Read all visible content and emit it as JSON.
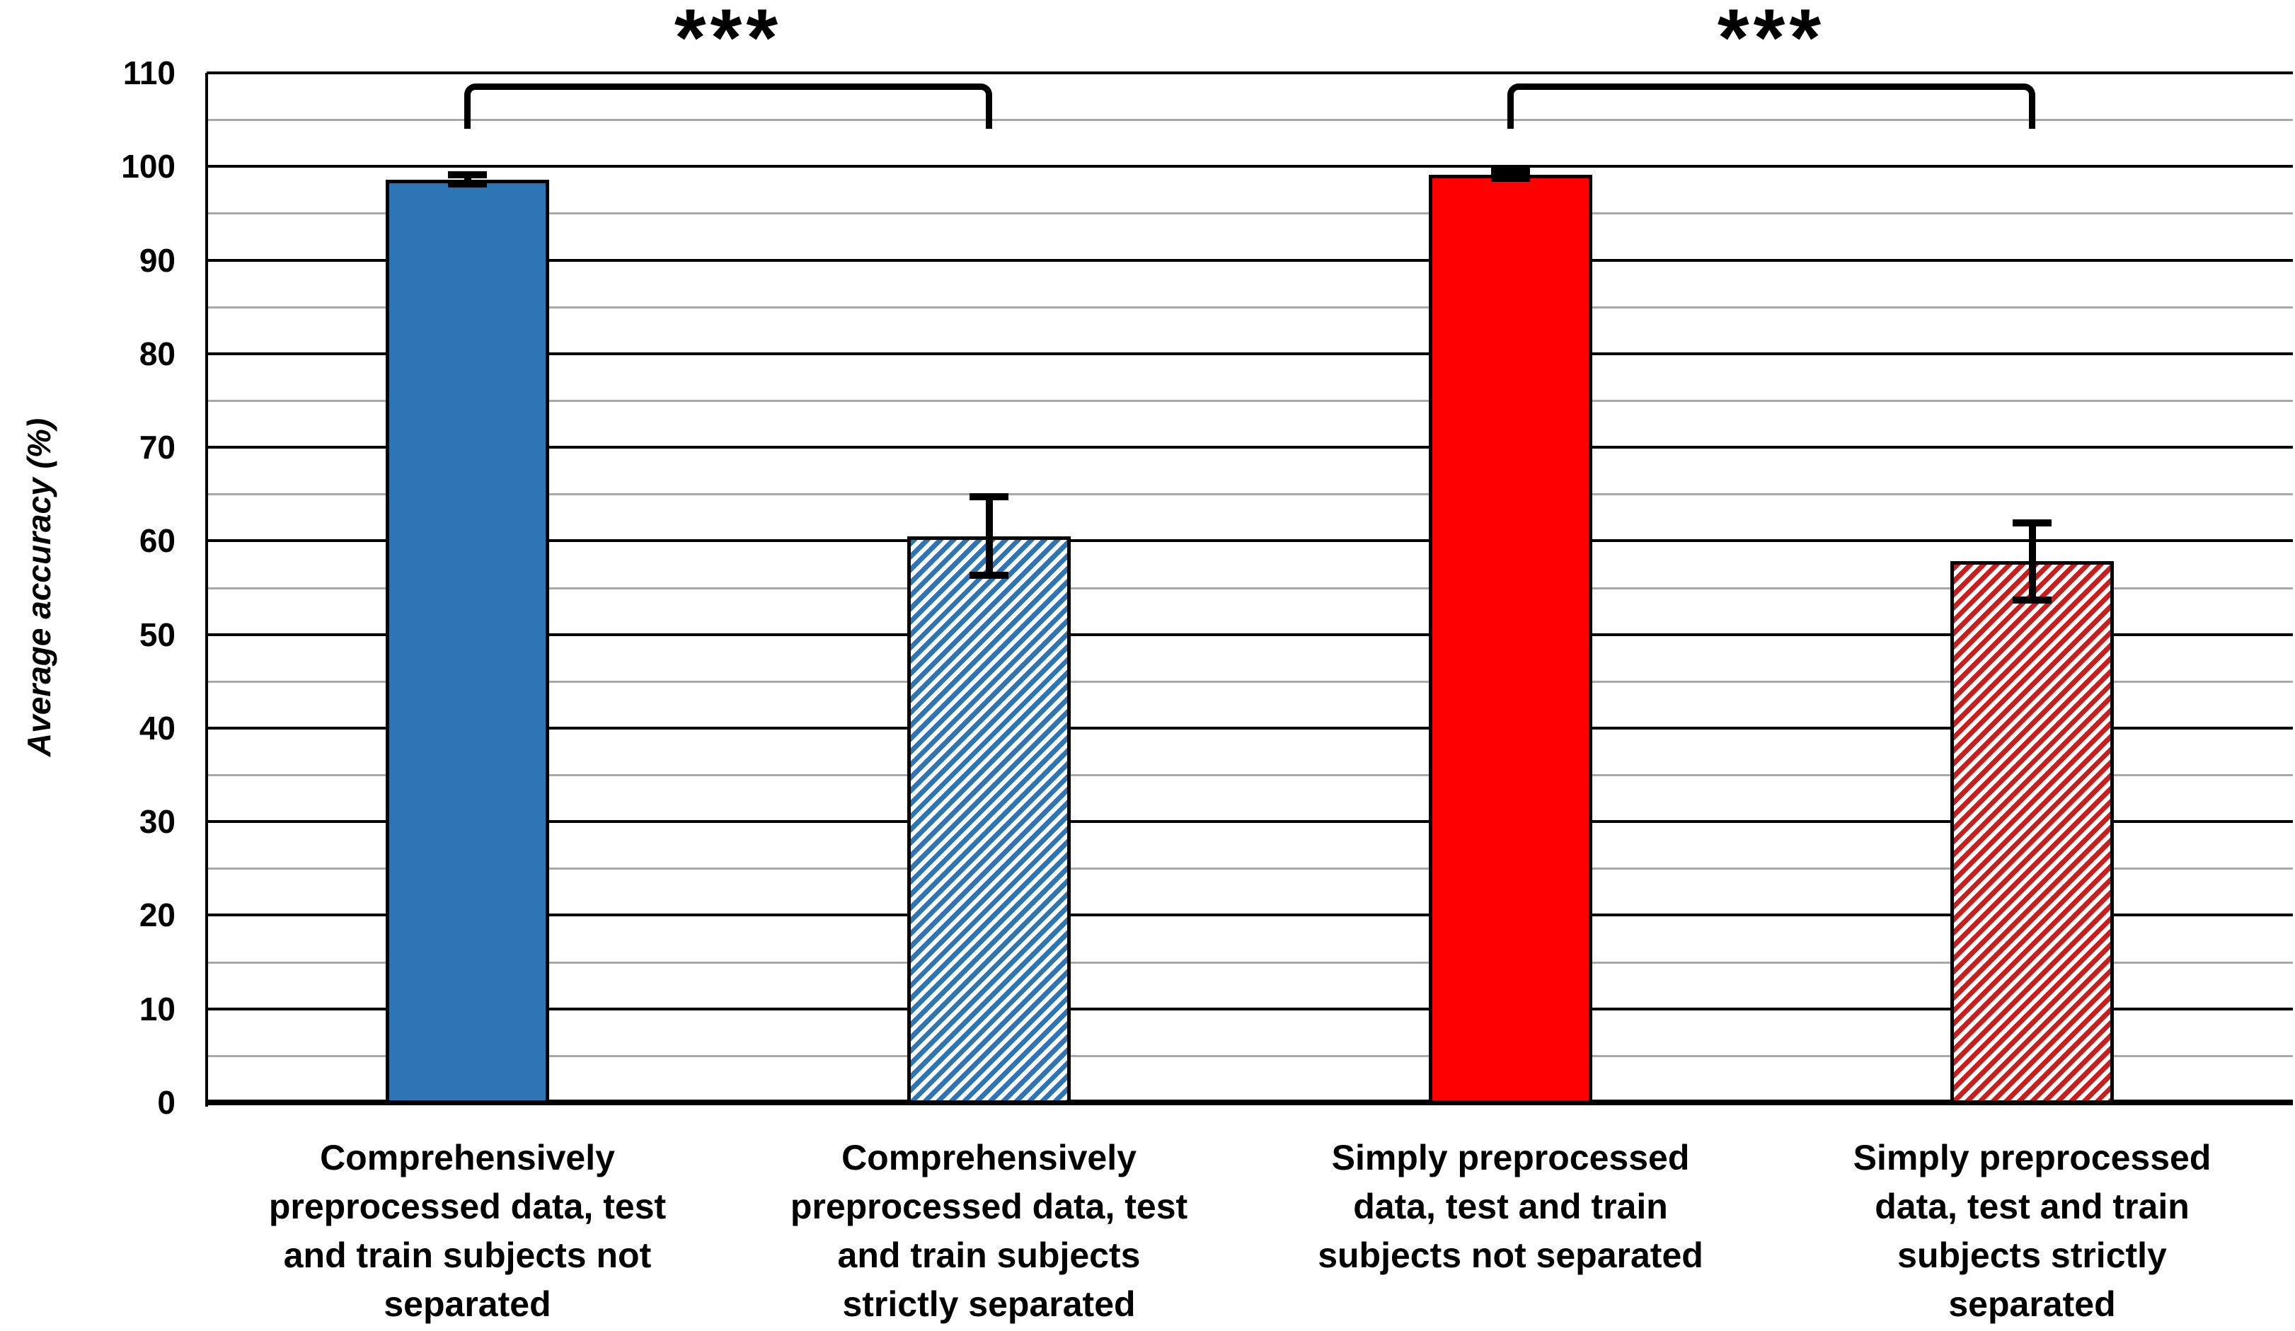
{
  "chart_data": {
    "type": "bar",
    "title": "",
    "xlabel": "",
    "ylabel": "Average accuracy (%)",
    "ylim": [
      0,
      110
    ],
    "yticks": [
      0,
      10,
      20,
      30,
      40,
      50,
      60,
      70,
      80,
      90,
      100,
      110
    ],
    "minor_tick_step": 5,
    "grid": "horizontal, major black every 10, minor gray every 5",
    "legend": "none",
    "categories": [
      "Comprehensively preprocessed data, test and train subjects not separated",
      "Comprehensively preprocessed data, test and train subjects strictly separated",
      "Simply preprocessed data, test and train subjects not separated",
      "Simply preprocessed data, test and train subjects strictly separated"
    ],
    "category_label_lines": [
      [
        "Comprehensively",
        "preprocessed data, test",
        "and train subjects not",
        "separated"
      ],
      [
        "Comprehensively",
        "preprocessed data, test",
        "and train subjects",
        "strictly separated"
      ],
      [
        "Simply preprocessed",
        "data, test and train",
        "subjects not separated"
      ],
      [
        "Simply preprocessed",
        "data, test and train",
        "subjects strictly",
        "separated"
      ]
    ],
    "values": [
      98.6,
      60.5,
      99.1,
      57.8
    ],
    "errors": [
      0.5,
      4.2,
      0.4,
      4.1
    ],
    "bar_styles": [
      {
        "fill": "#2E75B5",
        "pattern": "solid"
      },
      {
        "fill": "#2E75B5",
        "pattern": "diagonal-hatch"
      },
      {
        "fill": "#FF0000",
        "pattern": "solid"
      },
      {
        "fill": "#C81E1E",
        "pattern": "diagonal-hatch"
      }
    ],
    "significance": [
      {
        "from": 0,
        "to": 1,
        "label": "***"
      },
      {
        "from": 2,
        "to": 3,
        "label": "***"
      }
    ],
    "colors": {
      "major_grid": "#000000",
      "minor_grid": "#A8A8A8",
      "axis": "#000000",
      "error_bar": "#000000",
      "hatch_background": "#FFFFFF",
      "background": "#FFFFFF"
    }
  }
}
